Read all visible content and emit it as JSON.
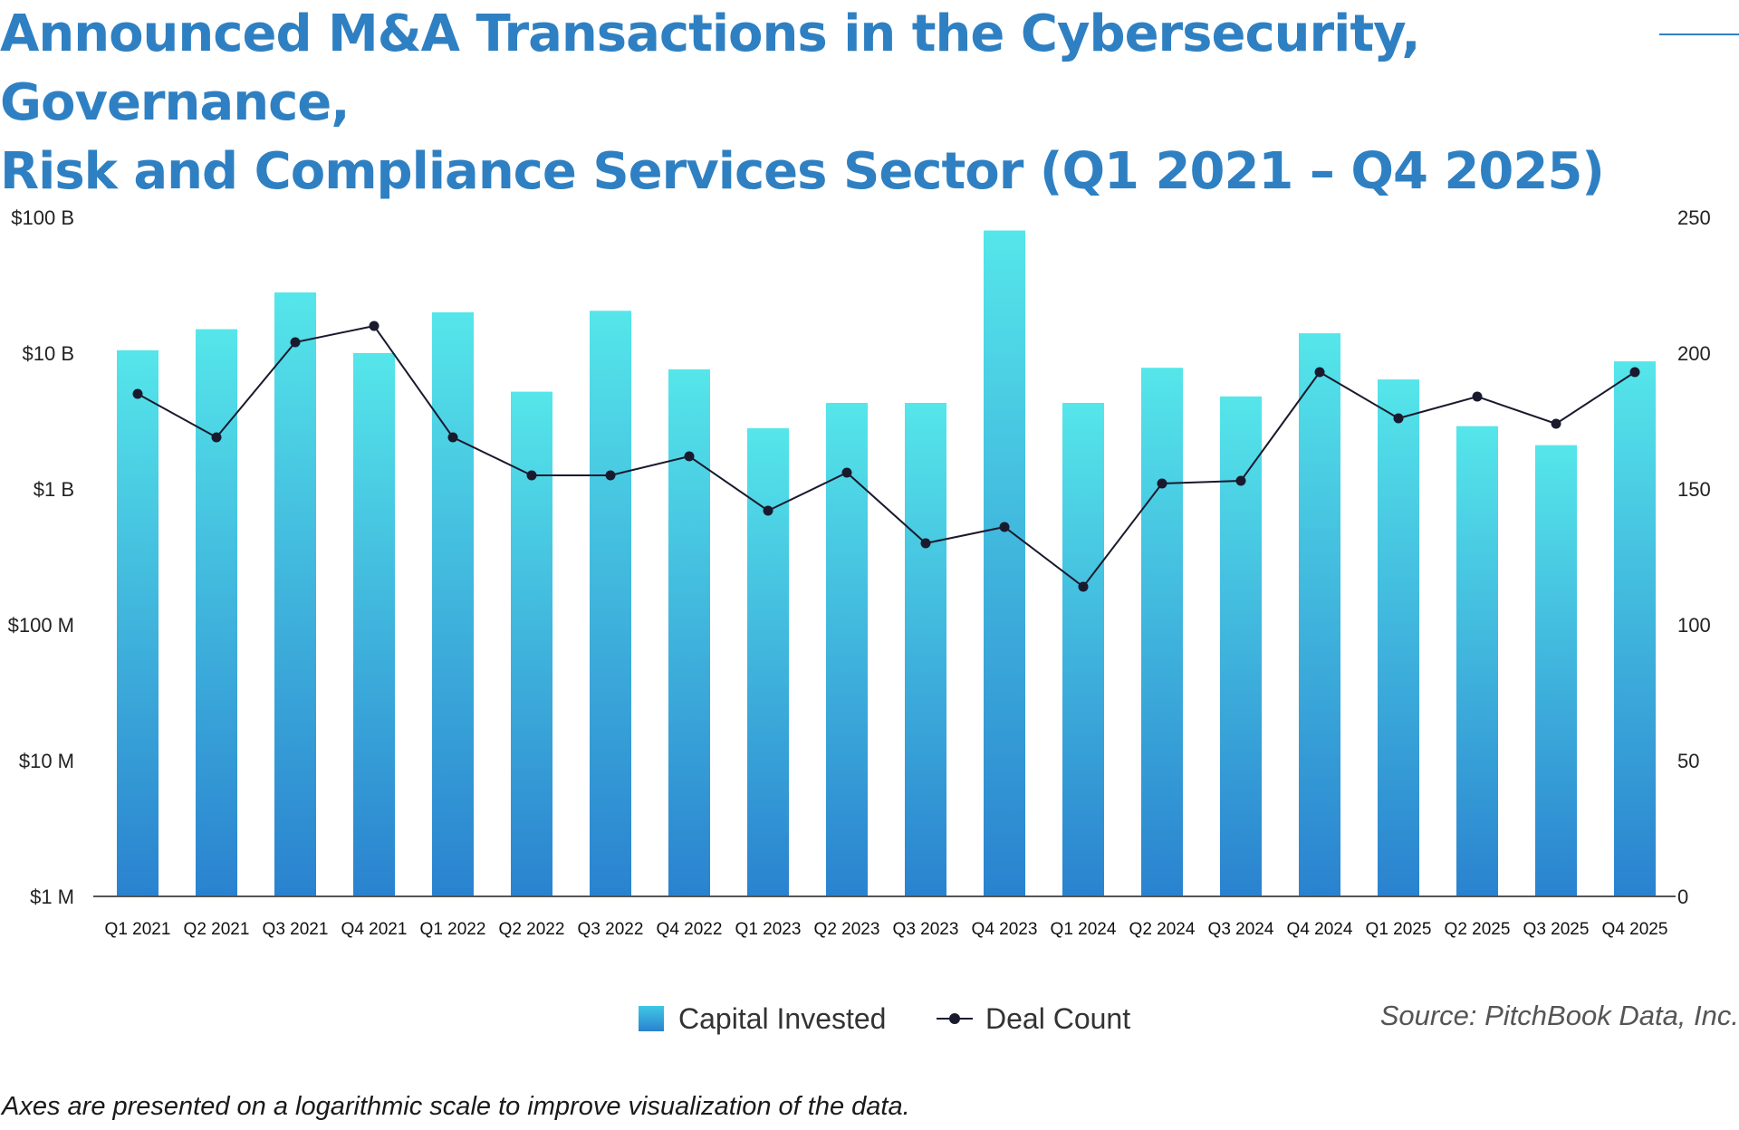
{
  "title": {
    "line1": "Announced M&A Transactions in the Cybersecurity, Governance,",
    "line2": "Risk and Compliance Services Sector (Q1 2021 – Q4 2025)"
  },
  "legend": {
    "bar_label": "Capital Invested",
    "line_label": "Deal Count"
  },
  "source": "Source: PitchBook Data, Inc.",
  "footnote": "Axes are presented on a logarithmic scale to improve visualization of the data.",
  "colors": {
    "title": "#2e80c2",
    "bar_top": "#55e6ea",
    "bar_bottom": "#2a82cf",
    "line": "#1a1a2e"
  },
  "chart_data": {
    "type": "bar",
    "categories": [
      "Q1 2021",
      "Q2 2021",
      "Q3 2021",
      "Q4 2021",
      "Q1 2022",
      "Q2 2022",
      "Q3 2022",
      "Q4 2022",
      "Q1 2023",
      "Q2 2023",
      "Q3 2023",
      "Q4 2023",
      "Q1 2024",
      "Q2 2024",
      "Q3 2024",
      "Q4 2024",
      "Q1 2025",
      "Q2 2025",
      "Q3 2025",
      "Q4 2025"
    ],
    "series": [
      {
        "name": "Capital Invested",
        "type": "bar",
        "axis": "left",
        "values": [
          10500000000,
          15000000000,
          28000000000,
          10000000000,
          20000000000,
          5200000000,
          20500000000,
          7600000000,
          2800000000,
          4300000000,
          4300000000,
          80000000000,
          4300000000,
          7800000000,
          4800000000,
          14000000000,
          6400000000,
          2900000000,
          2100000000,
          8700000000
        ]
      },
      {
        "name": "Deal Count",
        "type": "line",
        "axis": "right",
        "values": [
          185,
          169,
          204,
          210,
          169,
          155,
          155,
          162,
          142,
          156,
          130,
          136,
          114,
          152,
          153,
          193,
          176,
          184,
          174,
          193
        ]
      }
    ],
    "y_left": {
      "scale": "log",
      "ylim": [
        1000000,
        100000000000
      ],
      "ticks": [
        1000000,
        10000000,
        100000000,
        1000000000,
        10000000000,
        100000000000
      ],
      "tick_labels": [
        "$1 M",
        "$10 M",
        "$100 M",
        "$1 B",
        "$10 B",
        "$100 B"
      ]
    },
    "y_right": {
      "ylim": [
        0,
        250
      ],
      "ticks": [
        0,
        50,
        100,
        150,
        200,
        250
      ],
      "tick_labels": [
        "0",
        "50",
        "100",
        "150",
        "200",
        "250"
      ]
    },
    "xlabel": "",
    "ylabel": "",
    "legend_position": "bottom-center",
    "grid": false
  }
}
